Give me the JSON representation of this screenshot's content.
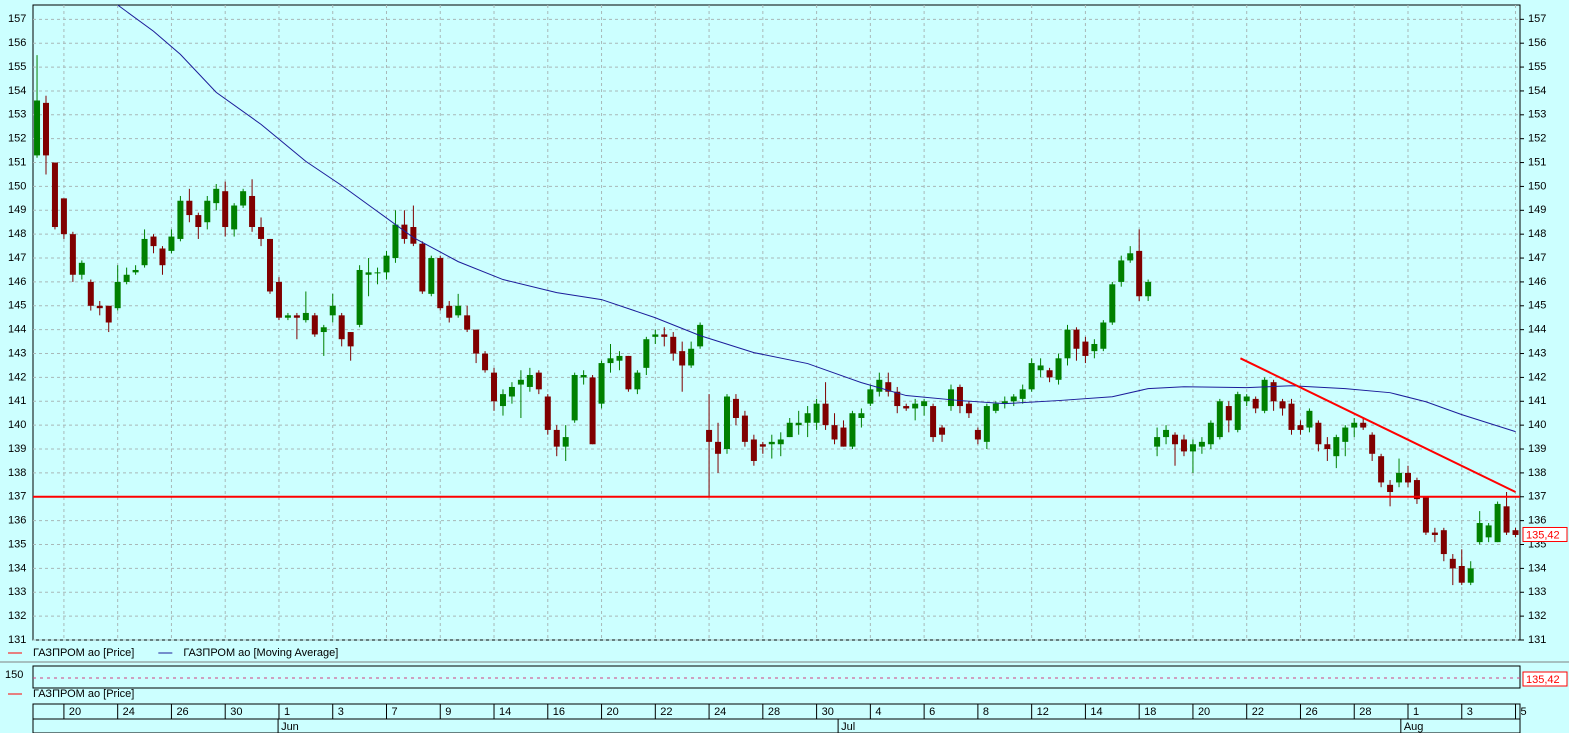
{
  "chart_data": {
    "type": "candlestick",
    "series": [
      {
        "type": "candlestick",
        "name": "ГАЗПРОМ ао [Price]",
        "color": "#ff0000",
        "up_color": "#008000",
        "down_color": "#800000",
        "open": [
          151.3,
          153.5,
          151,
          149.5,
          148,
          146.3,
          146,
          145,
          145,
          144.9,
          146,
          146.4,
          146.7,
          147.9,
          147.4,
          147.3,
          147.8,
          149.4,
          148.8,
          148.5,
          149.3,
          149.8,
          148.2,
          149.2,
          149.6,
          148.3,
          147.8,
          146,
          144.5,
          144.6,
          144.4,
          144.6,
          143.9,
          144.6,
          144.6,
          143.9,
          144.2,
          146.3,
          146.4,
          146.4,
          147,
          148.4,
          148.3,
          147.6,
          145.5,
          147,
          145,
          144.6,
          144.6,
          144,
          143,
          142.2,
          140.8,
          141.2,
          141.7,
          141.6,
          142.2,
          141.2,
          139.8,
          139.1,
          140.2,
          142,
          142,
          140.9,
          142.6,
          142.7,
          142.9,
          141.5,
          142.4,
          143.7,
          143.8,
          143.7,
          143.1,
          142.5,
          143.3,
          139.8,
          139.3,
          139,
          141.1,
          140.4,
          139.4,
          139.2,
          139.2,
          139.2,
          139.5,
          140,
          140.1,
          140.1,
          140.9,
          140,
          139.9,
          139.1,
          140.3,
          140.9,
          141.4,
          141.8,
          141.4,
          140.8,
          140.7,
          140.8,
          140.8,
          139.9,
          140.8,
          141.6,
          140.9,
          139.8,
          139.3,
          140.6,
          140.9,
          141,
          141.1,
          141.5,
          142.3,
          142.3,
          141.9,
          142.8,
          144,
          143.5,
          143.1,
          143.2,
          144.3,
          146,
          146.9,
          147.3,
          145.4,
          139.1,
          139.5,
          139.6,
          139.4,
          138.9,
          139.1,
          139.2,
          139.5,
          140.8,
          139.8,
          141,
          141.1,
          140.6,
          141.8,
          141,
          140.9,
          140,
          139.9,
          140.1,
          139.2,
          138.7,
          139.3,
          139.9,
          140.1,
          139.6,
          138.7,
          137.5,
          137.6,
          138,
          137.7,
          137,
          135.5,
          135.6,
          134.4,
          134.1,
          133.4,
          135.1,
          135.3,
          135.1,
          136.6,
          135.6
        ],
        "high": [
          155.5,
          153.8,
          151,
          149.5,
          148.1,
          146.9,
          146.1,
          145.2,
          145,
          146.7,
          146.6,
          146.7,
          148.2,
          148,
          147.5,
          148.2,
          149.6,
          149.9,
          148.9,
          149.6,
          150.1,
          150.2,
          149.3,
          149.9,
          150.3,
          148.7,
          147.8,
          146.2,
          144.7,
          144.7,
          145.6,
          144.7,
          144.2,
          145.5,
          144.7,
          143.9,
          146.7,
          147,
          146.6,
          147.3,
          149,
          149,
          149.2,
          147.7,
          147.1,
          147.1,
          145.2,
          145.5,
          145,
          144,
          143.1,
          142.4,
          141.5,
          141.8,
          142.3,
          142.4,
          142.3,
          141.3,
          140,
          140,
          142.2,
          142.3,
          142.1,
          142.7,
          143.4,
          143.1,
          142.9,
          142.3,
          143.7,
          144,
          144.1,
          143.9,
          143.5,
          143.5,
          144.3,
          141.3,
          140.1,
          141.3,
          141.3,
          140.6,
          139.6,
          139.3,
          139.6,
          139.7,
          140.3,
          140.6,
          140.8,
          141.1,
          141.8,
          140.5,
          140.2,
          140.6,
          140.7,
          141.7,
          142.2,
          142.2,
          141.6,
          140.9,
          141.1,
          141.1,
          140.9,
          140,
          141.7,
          141.7,
          141,
          139.9,
          140.9,
          141,
          141.2,
          141.3,
          141.7,
          142.8,
          142.8,
          142.4,
          143,
          144.2,
          144.1,
          143.7,
          143.6,
          144.4,
          146,
          147.1,
          147.5,
          148.2,
          146.1,
          139.9,
          140,
          139.7,
          139.6,
          139.4,
          139.5,
          140.2,
          141.1,
          141,
          141.4,
          141.3,
          141.2,
          142,
          141.9,
          141.1,
          141.1,
          140.2,
          140.7,
          140.2,
          139.5,
          139.6,
          140,
          140.3,
          140.3,
          139.7,
          138.8,
          137.7,
          138.6,
          138.3,
          137.8,
          137,
          135.7,
          135.7,
          134.6,
          134.8,
          134.3,
          136.4,
          135.9,
          136.8,
          137.2,
          135.7
        ],
        "low": [
          151.2,
          150.5,
          148.2,
          147.8,
          146,
          146.1,
          144.8,
          144.6,
          143.9,
          144.8,
          145.9,
          146.3,
          146.6,
          147.2,
          146.3,
          147.2,
          147.7,
          148.5,
          147.8,
          148.2,
          149,
          147.9,
          147.9,
          149.1,
          148.1,
          147.5,
          145.5,
          144.4,
          144.4,
          143.6,
          144.3,
          143.7,
          142.9,
          144.3,
          143.3,
          142.7,
          144.1,
          145.4,
          145.9,
          146.1,
          146.8,
          147.6,
          147.5,
          145.5,
          145.4,
          144.8,
          144.3,
          144.5,
          143.9,
          142.6,
          142.2,
          140.6,
          140.4,
          140.9,
          140.3,
          141.4,
          141.3,
          139.6,
          138.7,
          138.5,
          140.1,
          141.7,
          139.2,
          140.7,
          142.2,
          142.3,
          141.4,
          141.3,
          142.1,
          143.4,
          143.3,
          142.7,
          141.4,
          142.4,
          143.2,
          137,
          138,
          138.8,
          140,
          139.1,
          138.3,
          138.8,
          138.6,
          138.7,
          139.5,
          139.6,
          139.5,
          139.8,
          139.8,
          139.2,
          139.1,
          139,
          139.9,
          140.8,
          141.2,
          141.2,
          140.5,
          140.6,
          140.2,
          140.4,
          139.3,
          139.3,
          140.6,
          140.5,
          140.3,
          139.2,
          139,
          140.5,
          140.7,
          140.8,
          140.9,
          141.4,
          142,
          141.8,
          141.7,
          142.5,
          142.7,
          142.6,
          142.8,
          143.1,
          144.2,
          145.8,
          146.8,
          145.2,
          145.2,
          138.7,
          139.2,
          138.3,
          138.7,
          138,
          138.8,
          139,
          139.4,
          139.7,
          139.7,
          140.8,
          140.5,
          140.5,
          140.6,
          140.4,
          139.6,
          139.6,
          139.7,
          138.9,
          138.5,
          138.2,
          138.7,
          139.5,
          139.8,
          138.5,
          137.4,
          136.6,
          137.4,
          137.4,
          136.7,
          135.4,
          135.1,
          134.3,
          133.3,
          133.3,
          133.3,
          135,
          135.1,
          135.1,
          135.4,
          135.3
        ],
        "close": [
          153.6,
          151.3,
          148.3,
          148,
          146.3,
          146.8,
          145,
          144.9,
          144.3,
          146,
          146.3,
          146.5,
          147.8,
          147.5,
          146.7,
          147.9,
          149.4,
          148.8,
          148.3,
          149.4,
          149.9,
          148.3,
          149.2,
          149.8,
          148.3,
          147.8,
          145.6,
          144.5,
          144.6,
          144.5,
          144.7,
          143.8,
          144.1,
          145,
          143.6,
          143.3,
          146.5,
          146.4,
          146.4,
          147.1,
          148.4,
          147.8,
          147.6,
          145.6,
          147,
          144.9,
          144.5,
          145,
          144,
          143,
          142.3,
          141,
          141.3,
          141.6,
          141.9,
          142.1,
          141.5,
          139.8,
          139.1,
          139.5,
          142.1,
          142.1,
          139.2,
          142.6,
          142.8,
          142.9,
          141.5,
          142.2,
          143.6,
          143.8,
          143.7,
          143,
          142.5,
          143.2,
          144.2,
          139.3,
          138.8,
          141.2,
          140.3,
          139.3,
          138.5,
          139.1,
          139.3,
          139.4,
          140.1,
          140.1,
          140.5,
          140.9,
          140,
          139.4,
          139.1,
          140.5,
          140.5,
          141.5,
          141.9,
          141.4,
          140.8,
          140.7,
          140.9,
          141,
          139.5,
          139.6,
          141.5,
          140.8,
          140.5,
          139.4,
          140.8,
          140.9,
          141,
          141.2,
          141.5,
          142.6,
          142.5,
          142,
          142.8,
          144,
          143.2,
          142.9,
          143.4,
          144.3,
          145.9,
          146.9,
          147.2,
          145.4,
          146,
          139.5,
          139.8,
          139.2,
          138.9,
          139.2,
          139.3,
          140.1,
          141,
          140.2,
          141.3,
          141.2,
          140.7,
          141.9,
          141,
          140.7,
          139.8,
          139.8,
          140.6,
          139.2,
          139,
          139.5,
          139.9,
          140.1,
          139.9,
          138.8,
          137.6,
          137.2,
          138,
          137.6,
          136.9,
          135.5,
          135.4,
          134.6,
          134,
          133.4,
          134,
          135.9,
          135.8,
          136.7,
          135.5,
          135.4
        ]
      },
      {
        "type": "line",
        "name": "ГАЗПРОМ ао [Moving Average]",
        "color": "#1c1c9a",
        "x": [
          9,
          13,
          16,
          20,
          25,
          30,
          34,
          38,
          42,
          47,
          52,
          58,
          63,
          69,
          74,
          80,
          86,
          92,
          97,
          103,
          108,
          114,
          120,
          124,
          128,
          135,
          140,
          146,
          151,
          155,
          159,
          165
        ],
        "values": [
          157.6,
          156.5,
          155.53,
          153.94,
          152.6,
          151.05,
          150.04,
          148.95,
          147.86,
          146.85,
          146.1,
          145.55,
          145.26,
          144.5,
          143.75,
          143.04,
          142.58,
          141.78,
          141.24,
          141.03,
          140.9,
          141.03,
          141.19,
          141.53,
          141.61,
          141.57,
          141.65,
          141.53,
          141.36,
          140.98,
          140.44,
          139.73
        ]
      }
    ],
    "ylim": [
      131,
      157.6
    ],
    "yticks": [
      131,
      132,
      133,
      134,
      135,
      136,
      137,
      138,
      139,
      140,
      141,
      142,
      143,
      144,
      145,
      146,
      147,
      148,
      149,
      150,
      151,
      152,
      153,
      154,
      155,
      156,
      157
    ],
    "xlim": [
      -0.45,
      165.5
    ],
    "xticks": [
      {
        "value": 3,
        "label": "20"
      },
      {
        "value": 9,
        "label": "24"
      },
      {
        "value": 15,
        "label": "26"
      },
      {
        "value": 21,
        "label": "30"
      },
      {
        "value": 27,
        "label": "1"
      },
      {
        "value": 33,
        "label": "3"
      },
      {
        "value": 39,
        "label": "7"
      },
      {
        "value": 45,
        "label": "9"
      },
      {
        "value": 51,
        "label": "14"
      },
      {
        "value": 57,
        "label": "16"
      },
      {
        "value": 63,
        "label": "20"
      },
      {
        "value": 69,
        "label": "22"
      },
      {
        "value": 75,
        "label": "24"
      },
      {
        "value": 81,
        "label": "28"
      },
      {
        "value": 87,
        "label": "30"
      },
      {
        "value": 93,
        "label": "4"
      },
      {
        "value": 99,
        "label": "6"
      },
      {
        "value": 105,
        "label": "8"
      },
      {
        "value": 111,
        "label": "12"
      },
      {
        "value": 117,
        "label": "14"
      },
      {
        "value": 123,
        "label": "18"
      },
      {
        "value": 129,
        "label": "20"
      },
      {
        "value": 135,
        "label": "22"
      },
      {
        "value": 141,
        "label": "26"
      },
      {
        "value": 147,
        "label": "28"
      },
      {
        "value": 153,
        "label": "1"
      },
      {
        "value": 159,
        "label": "3"
      },
      {
        "value": 165,
        "label": "5"
      }
    ],
    "month_labels": [
      {
        "value": 26.9,
        "label": "Jun"
      },
      {
        "value": 89.4,
        "label": "Jul"
      },
      {
        "value": 152.2,
        "label": "Aug"
      }
    ],
    "grid": true,
    "hline": {
      "value": 137,
      "color": "#ff0000"
    },
    "trendline": {
      "x": [
        134.3,
        165
      ],
      "y": [
        142.8,
        137.2
      ],
      "color": "#ff0000"
    },
    "last_price": {
      "value": 135.42,
      "label": "135,42"
    },
    "lower_panel": {
      "ytick": 150,
      "legend": "ГАЗПРОМ ао [Price]"
    }
  }
}
